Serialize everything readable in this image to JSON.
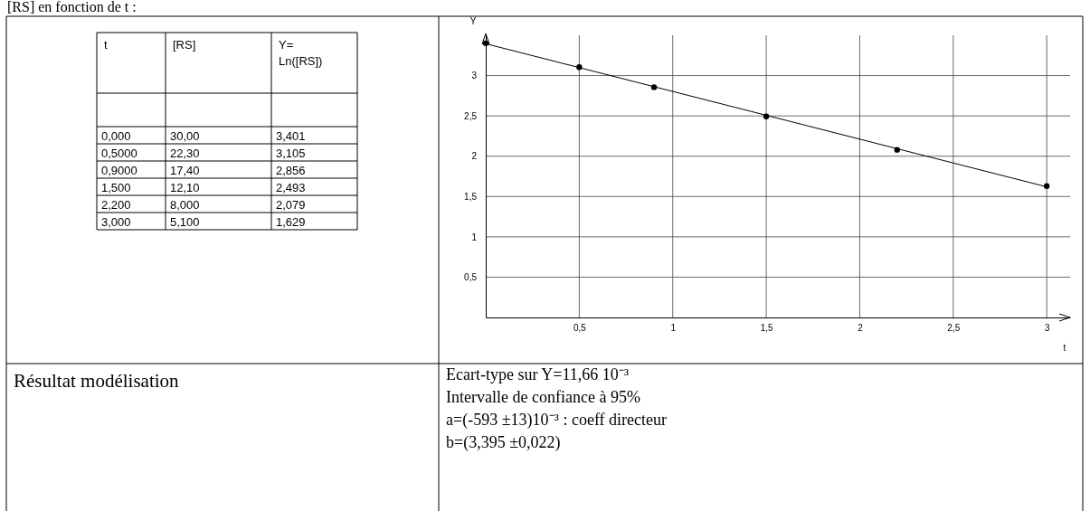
{
  "chart_data": [
    {
      "type": "other",
      "title": "[RS] en fonction de t :",
      "annotations": [
        "t",
        "[RS]",
        "Y= Ln([RS])",
        "0,000",
        "30,00",
        "3,401",
        "0,5000",
        "22,30",
        "3,105",
        "0,9000",
        "17,40",
        "2,856",
        "1,500",
        "12,10",
        "2,493",
        "2,200",
        "8,000",
        "2,079",
        "3,000",
        "5,100",
        "1,629"
      ]
    },
    {
      "type": "scatter",
      "xlabel": "t",
      "ylabel": "Y",
      "xlim": [
        0,
        3.125
      ],
      "ylim": [
        0,
        3.5
      ],
      "xticks": [
        {
          "value": 0.5,
          "label": "0,5"
        },
        1,
        {
          "value": 1.5,
          "label": "1,5"
        },
        2,
        {
          "value": 2.5,
          "label": "2,5"
        },
        3
      ],
      "yticks": [
        {
          "value": 0.5,
          "label": "0,5"
        },
        1,
        {
          "value": 1.5,
          "label": "1,5"
        },
        2,
        {
          "value": 2.5,
          "label": "2,5"
        },
        3
      ],
      "grid": true,
      "series": [
        {
          "type": "scatter",
          "marker": "circle",
          "color": "#000000",
          "x": [
            0,
            0.5,
            0.9,
            1.5,
            2.2,
            3.0
          ],
          "values": [
            3.401,
            3.105,
            2.856,
            2.493,
            2.079,
            1.629
          ]
        },
        {
          "type": "line",
          "color": "#000000",
          "x": [
            0,
            3
          ],
          "values": [
            3.395,
            1.62
          ]
        }
      ]
    },
    {
      "type": "other",
      "annotations": [
        "Résultat modélisation",
        "Ecart-type sur Y=11,66 10⁻³",
        "Intervalle de confiance à 95%",
        "a=(-593 ±13)10⁻³ : coeff directeur",
        "b=(3,395 ±0,022)"
      ]
    }
  ]
}
